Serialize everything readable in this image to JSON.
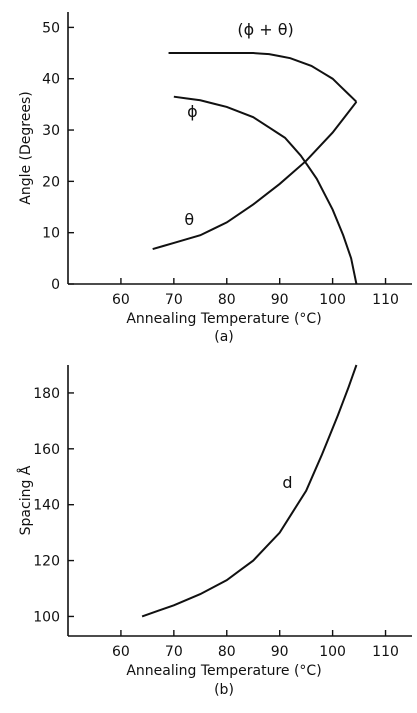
{
  "chart_data": [
    {
      "type": "line",
      "panel_label": "(a)",
      "xlabel": "Annealing Temperature (°C)",
      "ylabel": "Angle (Degrees)",
      "xlim": [
        50,
        115
      ],
      "ylim": [
        0,
        53
      ],
      "xticks": [
        60,
        70,
        80,
        90,
        100,
        110
      ],
      "yticks": [
        0,
        10,
        20,
        30,
        40,
        50
      ],
      "grid": false,
      "series": [
        {
          "name": "(ϕ + θ)",
          "x": [
            69,
            75,
            80,
            85,
            88,
            92,
            96,
            100,
            103,
            104.5
          ],
          "y": [
            45,
            45,
            45,
            45,
            44.8,
            44,
            42.5,
            40,
            37,
            35.5
          ]
        },
        {
          "name": "ϕ",
          "x": [
            70,
            75,
            80,
            85,
            88,
            91,
            94,
            97,
            100,
            102,
            103.5,
            104.5
          ],
          "y": [
            36.5,
            35.8,
            34.5,
            32.5,
            30.5,
            28.5,
            25,
            20.5,
            14.5,
            9.5,
            5,
            0
          ]
        },
        {
          "name": "θ",
          "x": [
            66,
            70,
            75,
            80,
            85,
            90,
            95,
            100,
            104.5
          ],
          "y": [
            6.8,
            8,
            9.5,
            12,
            15.5,
            19.5,
            24,
            29.5,
            35.5
          ]
        }
      ]
    },
    {
      "type": "line",
      "panel_label": "(b)",
      "xlabel": "Annealing Temperature (°C)",
      "ylabel": "Spacing Å",
      "xlim": [
        50,
        115
      ],
      "ylim": [
        93,
        190
      ],
      "xticks": [
        60,
        70,
        80,
        90,
        100,
        110
      ],
      "yticks": [
        100,
        120,
        140,
        160,
        180
      ],
      "grid": false,
      "series": [
        {
          "name": "d",
          "x": [
            64,
            70,
            75,
            80,
            85,
            90,
            95,
            98,
            101,
            103,
            104.5
          ],
          "y": [
            100,
            104,
            108,
            113,
            120,
            130,
            145,
            158,
            172,
            182,
            190
          ]
        }
      ]
    }
  ]
}
